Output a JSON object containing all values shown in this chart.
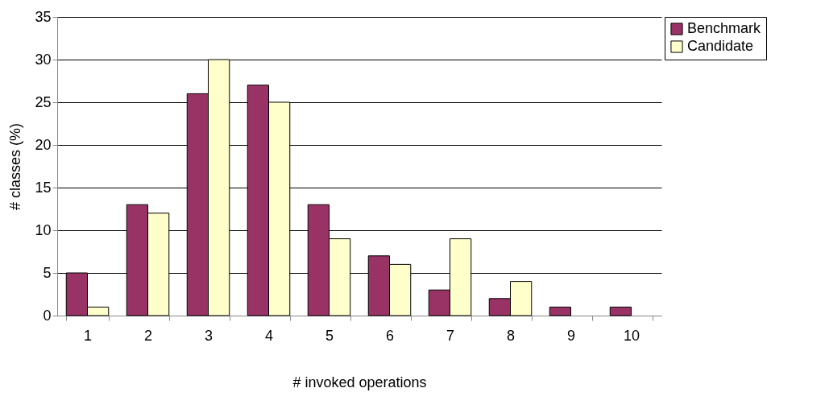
{
  "chart_data": {
    "type": "bar",
    "xlabel": "# invoked operations",
    "ylabel": "# classes (%)",
    "categories": [
      "1",
      "2",
      "3",
      "4",
      "5",
      "6",
      "7",
      "8",
      "9",
      "10"
    ],
    "series": [
      {
        "name": "Benchmark",
        "color": "#993366",
        "values": [
          5,
          13,
          26,
          27,
          13,
          7,
          3,
          2,
          1,
          1
        ]
      },
      {
        "name": "Candidate",
        "color": "#ffffcc",
        "values": [
          1,
          12,
          30,
          25,
          9,
          6,
          9,
          4,
          null,
          null
        ]
      }
    ],
    "ylim": [
      0,
      35
    ],
    "yticks": [
      0,
      5,
      10,
      15,
      20,
      25,
      30,
      35
    ],
    "grid": "y",
    "legend": "right"
  }
}
